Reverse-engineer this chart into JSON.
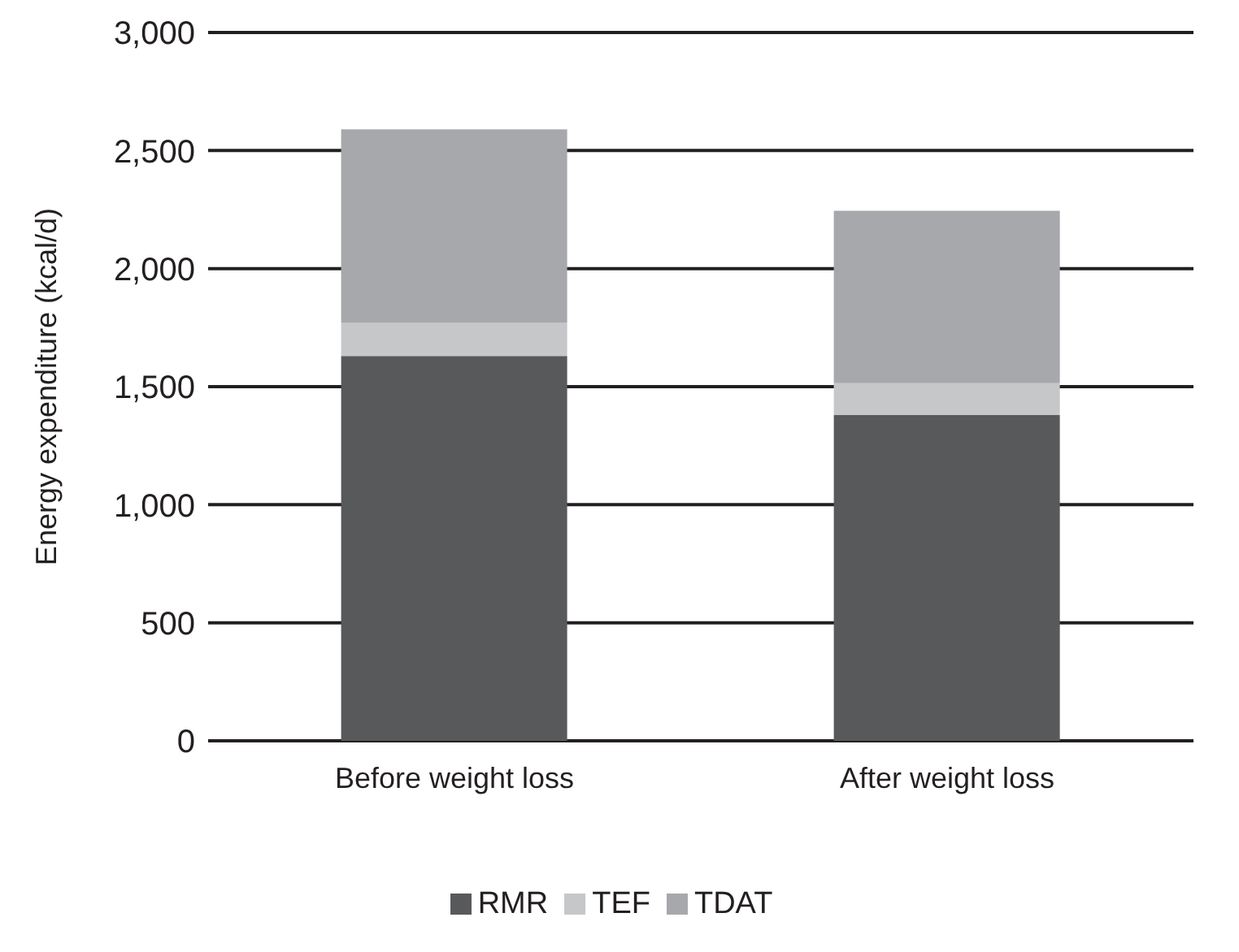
{
  "chart_data": {
    "type": "bar",
    "stacked": true,
    "ylabel": "Energy expenditure (kcal/d)",
    "categories": [
      "Before weight loss",
      "After weight loss"
    ],
    "series": [
      {
        "name": "RMR",
        "color": "#58595b",
        "values": [
          1630,
          1380
        ]
      },
      {
        "name": "TEF",
        "color": "#c6c7c9",
        "values": [
          140,
          135
        ]
      },
      {
        "name": "TDAT",
        "color": "#a7a8ab",
        "values": [
          820,
          730
        ]
      }
    ],
    "ylim": [
      0,
      3000
    ],
    "yticks": [
      {
        "value": 0,
        "label": "0"
      },
      {
        "value": 500,
        "label": "500"
      },
      {
        "value": 1000,
        "label": "1,000"
      },
      {
        "value": 1500,
        "label": "1,500"
      },
      {
        "value": 2000,
        "label": "2,000"
      },
      {
        "value": 2500,
        "label": "2,500"
      },
      {
        "value": 3000,
        "label": "3,000"
      }
    ],
    "grid": "y",
    "legend": "bottom"
  }
}
